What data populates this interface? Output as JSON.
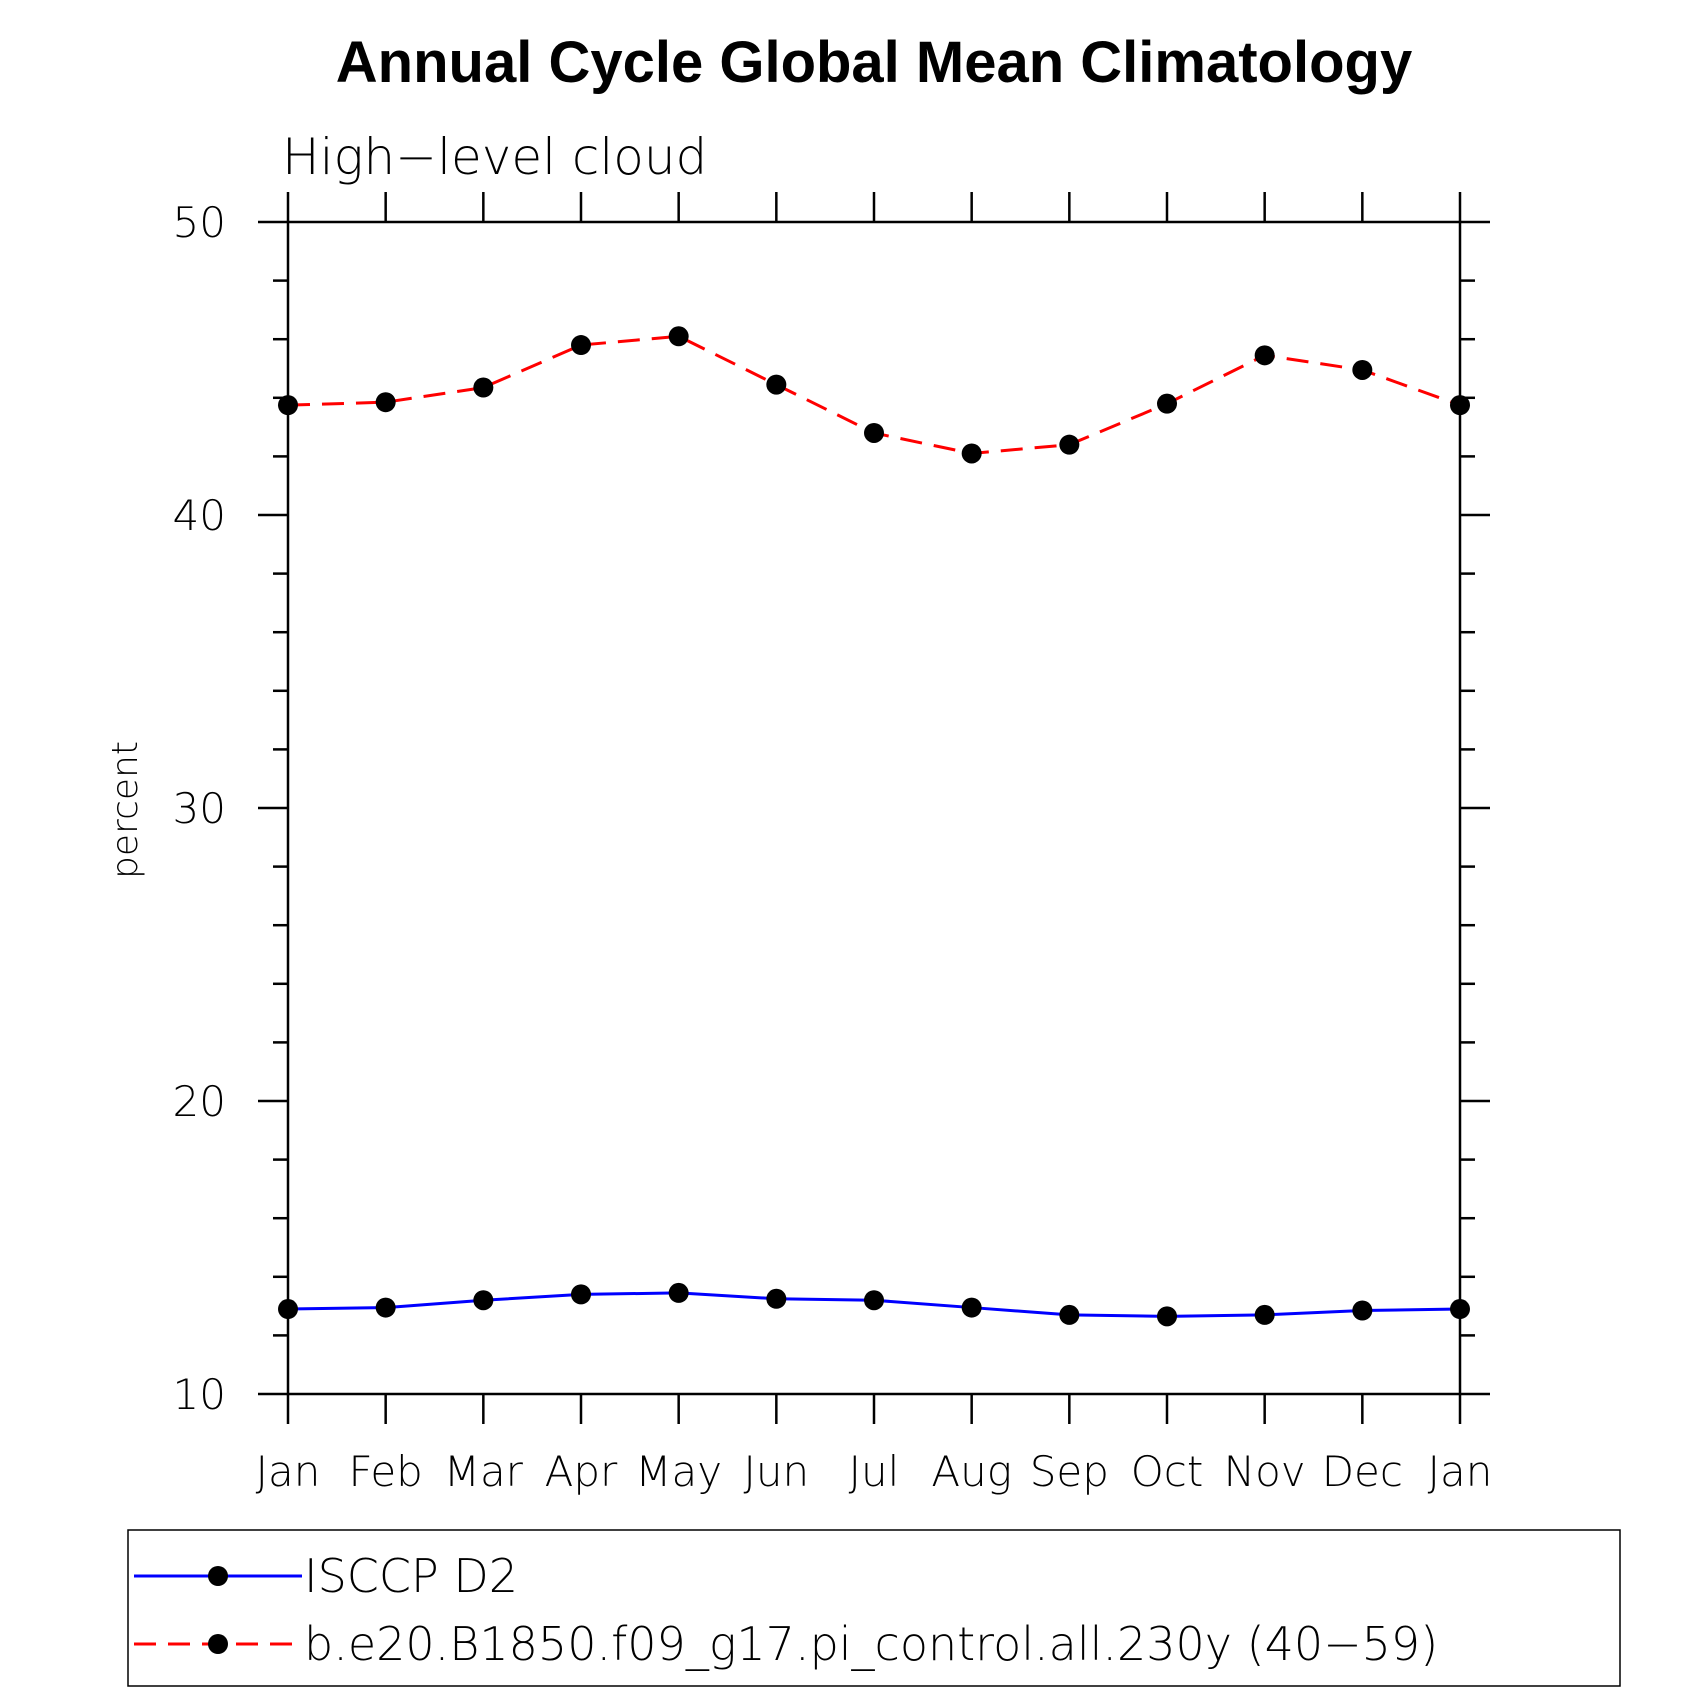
{
  "chart_data": {
    "type": "line",
    "title": "Annual Cycle Global Mean Climatology",
    "subtitle": "High−level cloud",
    "ylabel": "percent",
    "xlabel": "",
    "categories": [
      "Jan",
      "Feb",
      "Mar",
      "Apr",
      "May",
      "Jun",
      "Jul",
      "Aug",
      "Sep",
      "Oct",
      "Nov",
      "Dec",
      "Jan"
    ],
    "ylim": [
      10,
      50
    ],
    "yticks": [
      "10",
      "20",
      "30",
      "40",
      "50"
    ],
    "grid": false,
    "legend_position": "bottom",
    "series": [
      {
        "name": "ISCCP D2",
        "color": "#0000ff",
        "dash": "solid",
        "marker": "filled-circle",
        "values": [
          12.9,
          12.95,
          13.2,
          13.4,
          13.45,
          13.25,
          13.2,
          12.95,
          12.7,
          12.65,
          12.7,
          12.85,
          12.9
        ]
      },
      {
        "name": "b.e20.B1850.f09_g17.pi_control.all.230y (40−59)",
        "color": "#ff0000",
        "dash": "dashed",
        "marker": "filled-circle",
        "values": [
          43.75,
          43.85,
          44.35,
          45.8,
          46.1,
          44.45,
          42.8,
          42.1,
          42.4,
          43.8,
          45.45,
          44.95,
          43.75
        ]
      }
    ]
  }
}
